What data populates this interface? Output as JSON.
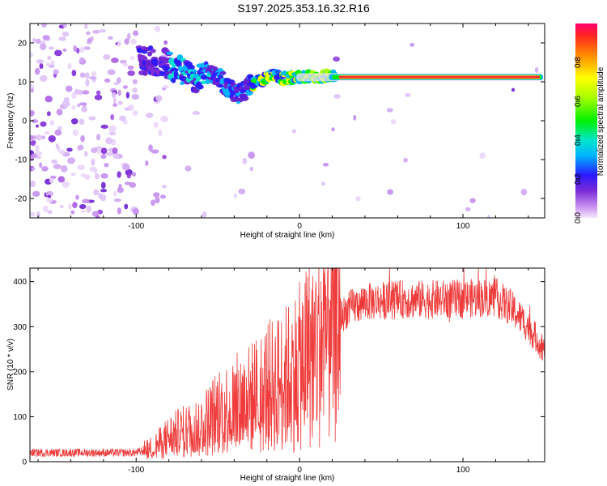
{
  "title": "S197.2025.353.16.32.R16",
  "chart_data": [
    {
      "type": "heatmap",
      "xlabel": "Height of straight line (km)",
      "ylabel": "Frequency (Hz)",
      "xlim": [
        -165,
        150
      ],
      "ylim": [
        -25,
        25
      ],
      "xticks": [
        -100,
        0,
        100
      ],
      "yticks": [
        -20,
        -10,
        0,
        10,
        20
      ],
      "colorbar": {
        "label": "Normalized spectral amplitude",
        "range": [
          0,
          1
        ],
        "ticks": [
          0,
          0.2,
          0.4,
          0.6,
          0.8
        ],
        "tick_labels": [
          "0.0",
          "0.2",
          "0.4",
          "0.6",
          "0.8"
        ]
      },
      "signal_track": [
        {
          "x": -95,
          "y": 15.5
        },
        {
          "x": -85,
          "y": 15
        },
        {
          "x": -75,
          "y": 13.5
        },
        {
          "x": -65,
          "y": 11
        },
        {
          "x": -58,
          "y": 12.5
        },
        {
          "x": -50,
          "y": 11
        },
        {
          "x": -42,
          "y": 8
        },
        {
          "x": -38,
          "y": 6
        },
        {
          "x": -32,
          "y": 8.5
        },
        {
          "x": -25,
          "y": 10
        },
        {
          "x": -18,
          "y": 12
        },
        {
          "x": -10,
          "y": 11
        },
        {
          "x": 0,
          "y": 11
        },
        {
          "x": 10,
          "y": 11.5
        },
        {
          "x": 25,
          "y": 11.2
        },
        {
          "x": 148,
          "y": 11.2
        }
      ]
    },
    {
      "type": "line",
      "xlabel": "Height of straight line (km)",
      "ylabel": "SNR (10 * v/v)",
      "xlim": [
        -165,
        150
      ],
      "ylim": [
        0,
        430
      ],
      "xticks": [
        -100,
        0,
        100
      ],
      "yticks": [
        0,
        100,
        200,
        300,
        400
      ],
      "color": "#ef3b3b",
      "envelope": [
        {
          "x": -165,
          "y": 20
        },
        {
          "x": -100,
          "y": 20
        },
        {
          "x": -90,
          "y": 30
        },
        {
          "x": -80,
          "y": 55
        },
        {
          "x": -60,
          "y": 80
        },
        {
          "x": -50,
          "y": 110
        },
        {
          "x": -30,
          "y": 140
        },
        {
          "x": -20,
          "y": 165
        },
        {
          "x": -10,
          "y": 180
        },
        {
          "x": 0,
          "y": 210
        },
        {
          "x": 10,
          "y": 260
        },
        {
          "x": 20,
          "y": 300
        },
        {
          "x": 30,
          "y": 340
        },
        {
          "x": 40,
          "y": 355
        },
        {
          "x": 60,
          "y": 360
        },
        {
          "x": 80,
          "y": 360
        },
        {
          "x": 100,
          "y": 362
        },
        {
          "x": 120,
          "y": 365
        },
        {
          "x": 130,
          "y": 340
        },
        {
          "x": 140,
          "y": 300
        },
        {
          "x": 150,
          "y": 245
        }
      ]
    }
  ]
}
